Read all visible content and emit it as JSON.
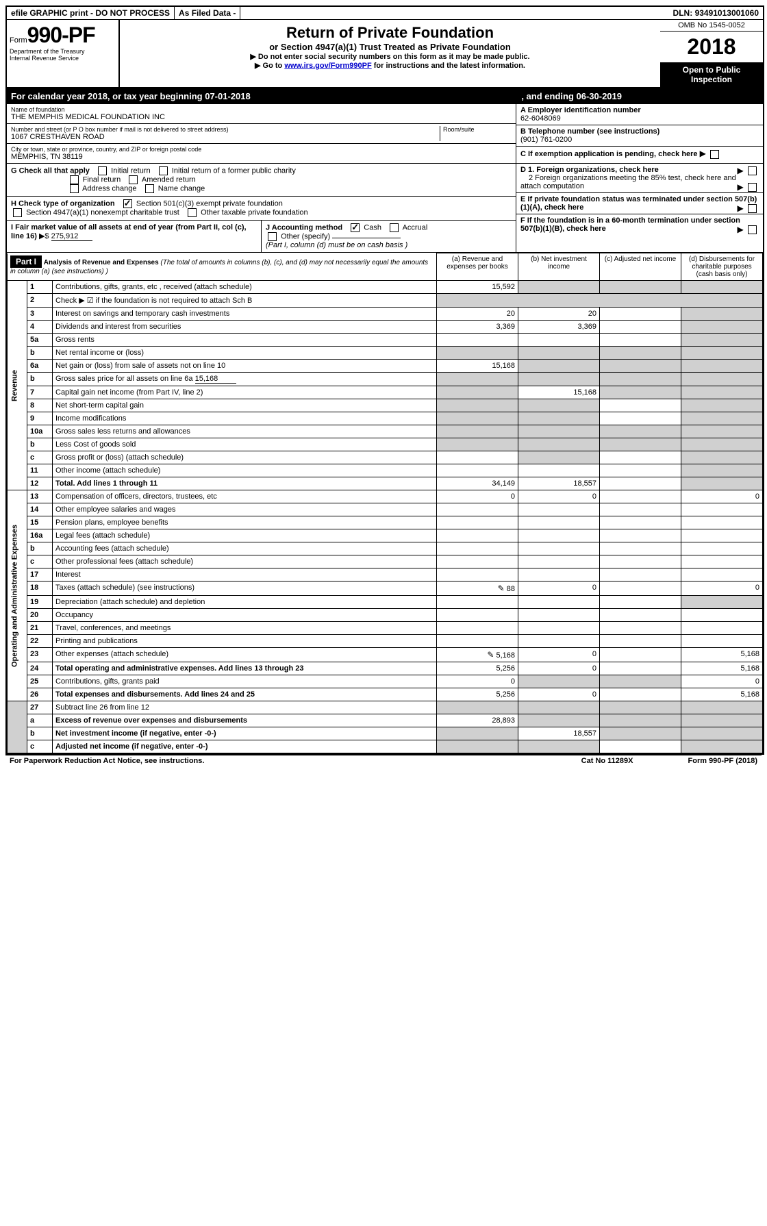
{
  "top": {
    "efile": "efile GRAPHIC print - DO NOT PROCESS",
    "asfiled": "As Filed Data -",
    "dln_label": "DLN:",
    "dln": "93491013001060"
  },
  "header": {
    "form_prefix": "Form",
    "form_num": "990-PF",
    "dept1": "Department of the Treasury",
    "dept2": "Internal Revenue Service",
    "title": "Return of Private Foundation",
    "subtitle": "or Section 4947(a)(1) Trust Treated as Private Foundation",
    "instr1": "▶ Do not enter social security numbers on this form as it may be made public.",
    "instr2_pre": "▶ Go to ",
    "instr2_link": "www.irs.gov/Form990PF",
    "instr2_post": " for instructions and the latest information.",
    "omb": "OMB No 1545-0052",
    "year": "2018",
    "open": "Open to Public Inspection"
  },
  "cal": {
    "text1": "For calendar year 2018, or tax year beginning 07-01-2018",
    "text2": ", and ending 06-30-2019"
  },
  "name": {
    "label": "Name of foundation",
    "value": "THE MEMPHIS MEDICAL FOUNDATION INC"
  },
  "addr": {
    "label": "Number and street (or P O  box number if mail is not delivered to street address)",
    "value": "1067 CRESTHAVEN ROAD",
    "room_label": "Room/suite"
  },
  "city": {
    "label": "City or town, state or province, country, and ZIP or foreign postal code",
    "value": "MEMPHIS, TN  38119"
  },
  "A": {
    "label": "A Employer identification number",
    "value": "62-6048069"
  },
  "B": {
    "label": "B Telephone number (see instructions)",
    "value": "(901) 761-0200"
  },
  "C": {
    "label": "C If exemption application is pending, check here"
  },
  "D": {
    "d1": "D 1. Foreign organizations, check here",
    "d2": "2 Foreign organizations meeting the 85% test, check here and attach computation"
  },
  "E": {
    "label": "E  If private foundation status was terminated under section 507(b)(1)(A), check here"
  },
  "F": {
    "label": "F  If the foundation is in a 60-month termination under section 507(b)(1)(B), check here"
  },
  "G": {
    "label": "G Check all that apply",
    "o1": "Initial return",
    "o2": "Initial return of a former public charity",
    "o3": "Final return",
    "o4": "Amended return",
    "o5": "Address change",
    "o6": "Name change"
  },
  "H": {
    "label": "H Check type of organization",
    "o1": "Section 501(c)(3) exempt private foundation",
    "o2": "Section 4947(a)(1) nonexempt charitable trust",
    "o3": "Other taxable private foundation"
  },
  "I": {
    "label": "I Fair market value of all assets at end of year (from Part II, col  (c), line 16)",
    "arrow": "▶$",
    "value": "275,912"
  },
  "J": {
    "label": "J Accounting method",
    "o1": "Cash",
    "o2": "Accrual",
    "o3": "Other (specify)",
    "note": "(Part I, column (d) must be on cash basis )"
  },
  "part1": {
    "label": "Part I",
    "title": "Analysis of Revenue and Expenses",
    "note": "(The total of amounts in columns (b), (c), and (d) may not necessarily equal the amounts in column (a) (see instructions) )",
    "col_a": "(a) Revenue and expenses per books",
    "col_b": "(b) Net investment income",
    "col_c": "(c) Adjusted net income",
    "col_d": "(d) Disbursements for charitable purposes (cash basis only)"
  },
  "sections": {
    "revenue": "Revenue",
    "expenses": "Operating and Administrative Expenses"
  },
  "rows": {
    "r1": {
      "n": "1",
      "d": "Contributions, gifts, grants, etc , received (attach schedule)",
      "a": "15,592",
      "b": "",
      "c": "",
      "dd": "",
      "ga": false,
      "gb": true,
      "gc": true,
      "gd": true
    },
    "r2": {
      "n": "2",
      "d": "Check ▶ ☑ if the foundation is not required to attach Sch B",
      "nb": true
    },
    "r3": {
      "n": "3",
      "d": "Interest on savings and temporary cash investments",
      "a": "20",
      "b": "20",
      "c": "",
      "dd": "",
      "gd": true
    },
    "r4": {
      "n": "4",
      "d": "Dividends and interest from securities",
      "a": "3,369",
      "b": "3,369",
      "c": "",
      "dd": "",
      "gd": true
    },
    "r5a": {
      "n": "5a",
      "d": "Gross rents",
      "gd": true
    },
    "r5b": {
      "n": "b",
      "d": "Net rental income or (loss)",
      "ga": true,
      "gb": true,
      "gc": true,
      "gd": true,
      "inline": true
    },
    "r6a": {
      "n": "6a",
      "d": "Net gain or (loss) from sale of assets not on line 10",
      "a": "15,168",
      "gb": true,
      "gc": true,
      "gd": true
    },
    "r6b": {
      "n": "b",
      "d": "Gross sales price for all assets on line 6a",
      "val": "15,168",
      "ga": true,
      "gb": true,
      "gc": true,
      "gd": true,
      "inline": true
    },
    "r7": {
      "n": "7",
      "d": "Capital gain net income (from Part IV, line 2)",
      "b": "15,168",
      "ga": true,
      "gc": true,
      "gd": true
    },
    "r8": {
      "n": "8",
      "d": "Net short-term capital gain",
      "ga": true,
      "gb": true,
      "gd": true
    },
    "r9": {
      "n": "9",
      "d": "Income modifications",
      "ga": true,
      "gb": true,
      "gd": true
    },
    "r10a": {
      "n": "10a",
      "d": "Gross sales less returns and allowances",
      "ga": true,
      "gb": true,
      "gc": true,
      "gd": true,
      "inline": true
    },
    "r10b": {
      "n": "b",
      "d": "Less  Cost of goods sold",
      "ga": true,
      "gb": true,
      "gc": true,
      "gd": true,
      "inline": true
    },
    "r10c": {
      "n": "c",
      "d": "Gross profit or (loss) (attach schedule)",
      "gb": true,
      "gd": true
    },
    "r11": {
      "n": "11",
      "d": "Other income (attach schedule)",
      "gd": true
    },
    "r12": {
      "n": "12",
      "d": "Total. Add lines 1 through 11",
      "a": "34,149",
      "b": "18,557",
      "bold": true,
      "gd": true
    },
    "r13": {
      "n": "13",
      "d": "Compensation of officers, directors, trustees, etc",
      "a": "0",
      "b": "0",
      "dd": "0"
    },
    "r14": {
      "n": "14",
      "d": "Other employee salaries and wages"
    },
    "r15": {
      "n": "15",
      "d": "Pension plans, employee benefits"
    },
    "r16a": {
      "n": "16a",
      "d": "Legal fees (attach schedule)"
    },
    "r16b": {
      "n": "b",
      "d": "Accounting fees (attach schedule)"
    },
    "r16c": {
      "n": "c",
      "d": "Other professional fees (attach schedule)"
    },
    "r17": {
      "n": "17",
      "d": "Interest"
    },
    "r18": {
      "n": "18",
      "d": "Taxes (attach schedule) (see instructions)",
      "a": "88",
      "b": "0",
      "dd": "0",
      "att": true
    },
    "r19": {
      "n": "19",
      "d": "Depreciation (attach schedule) and depletion",
      "gd": true
    },
    "r20": {
      "n": "20",
      "d": "Occupancy"
    },
    "r21": {
      "n": "21",
      "d": "Travel, conferences, and meetings"
    },
    "r22": {
      "n": "22",
      "d": "Printing and publications"
    },
    "r23": {
      "n": "23",
      "d": "Other expenses (attach schedule)",
      "a": "5,168",
      "b": "0",
      "dd": "5,168",
      "att": true
    },
    "r24": {
      "n": "24",
      "d": "Total operating and administrative expenses. Add lines 13 through 23",
      "a": "5,256",
      "b": "0",
      "dd": "5,168",
      "bold": true
    },
    "r25": {
      "n": "25",
      "d": "Contributions, gifts, grants paid",
      "a": "0",
      "dd": "0",
      "gb": true,
      "gc": true
    },
    "r26": {
      "n": "26",
      "d": "Total expenses and disbursements. Add lines 24 and 25",
      "a": "5,256",
      "b": "0",
      "dd": "5,168",
      "bold": true
    },
    "r27": {
      "n": "27",
      "d": "Subtract line 26 from line 12",
      "ga": true,
      "gb": true,
      "gc": true,
      "gd": true
    },
    "r27a": {
      "n": "a",
      "d": "Excess of revenue over expenses and disbursements",
      "a": "28,893",
      "bold": true,
      "gb": true,
      "gc": true,
      "gd": true
    },
    "r27b": {
      "n": "b",
      "d": "Net investment income (if negative, enter -0-)",
      "b": "18,557",
      "bold": true,
      "ga": true,
      "gc": true,
      "gd": true
    },
    "r27c": {
      "n": "c",
      "d": "Adjusted net income (if negative, enter -0-)",
      "bold": true,
      "ga": true,
      "gb": true,
      "gd": true
    }
  },
  "footer": {
    "left": "For Paperwork Reduction Act Notice, see instructions.",
    "mid": "Cat  No  11289X",
    "right": "Form 990-PF (2018)"
  }
}
